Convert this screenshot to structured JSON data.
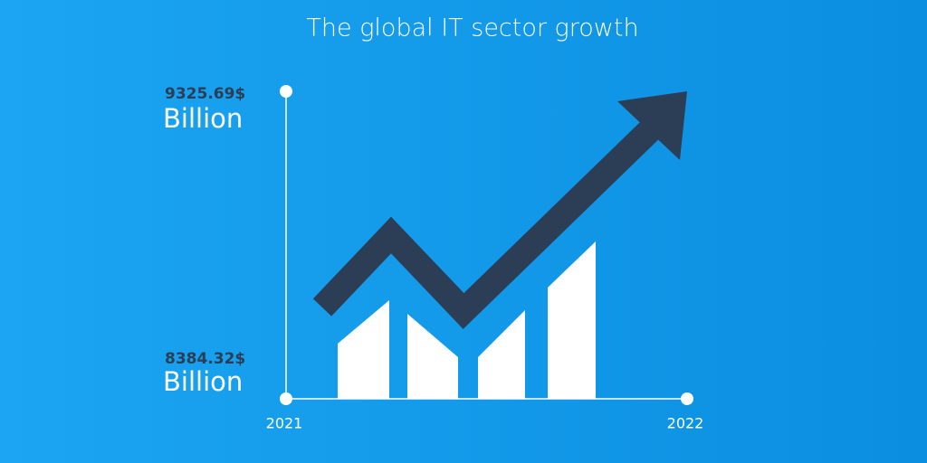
{
  "title": "The global IT sector growth",
  "axis": {
    "top_label": {
      "value": "9325.69$",
      "unit": "Billion"
    },
    "bottom_label": {
      "value": "8384.32$",
      "unit": "Billion"
    },
    "start_year": "2021",
    "end_year": "2022"
  }
}
